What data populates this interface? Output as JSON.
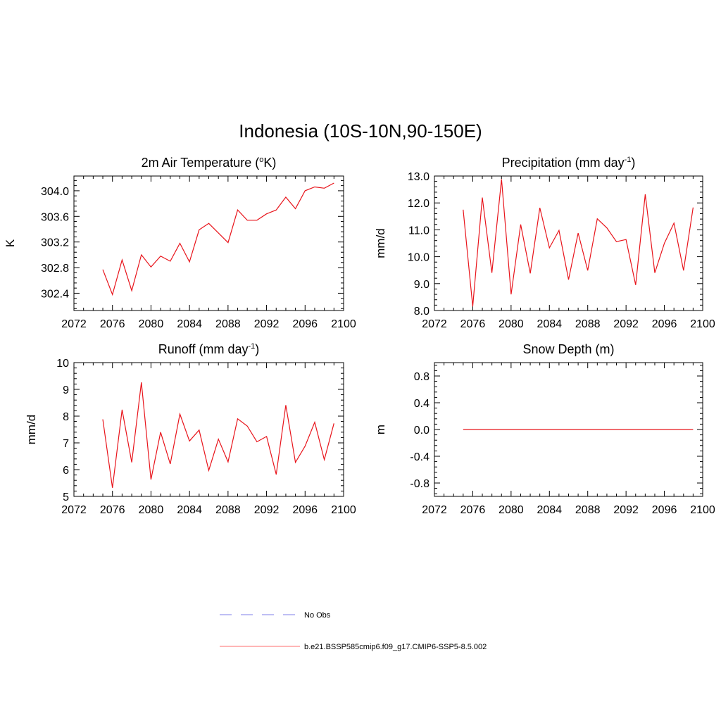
{
  "main_title": "Indonesia (10S-10N,90-150E)",
  "chart_data": [
    {
      "type": "line",
      "title": "2m Air Temperature (",
      "title_sup": "o",
      "title_tail": "K)",
      "ylabel": "K",
      "xlim": [
        2072,
        2100
      ],
      "ylim": [
        302.13,
        304.23
      ],
      "yticks": [
        302.4,
        302.8,
        303.2,
        303.6,
        304.0
      ],
      "ytick_labels": [
        "302.4",
        "302.8",
        "303.2",
        "303.6",
        "304.0"
      ],
      "xticks": [
        2072,
        2076,
        2080,
        2084,
        2088,
        2092,
        2096,
        2100
      ],
      "xtick_labels": [
        "2072",
        "2076",
        "2080",
        "2084",
        "2088",
        "2092",
        "2096",
        "2100"
      ],
      "x": [
        2075,
        2076,
        2077,
        2078,
        2079,
        2080,
        2081,
        2082,
        2083,
        2084,
        2085,
        2086,
        2087,
        2088,
        2089,
        2090,
        2091,
        2092,
        2093,
        2094,
        2095,
        2096,
        2097,
        2098,
        2099
      ],
      "values": [
        302.77,
        302.38,
        302.92,
        302.44,
        303.0,
        302.81,
        302.98,
        302.9,
        303.18,
        302.89,
        303.39,
        303.49,
        303.34,
        303.19,
        303.7,
        303.54,
        303.54,
        303.64,
        303.7,
        303.9,
        303.72,
        304.0,
        304.06,
        304.04,
        304.12
      ]
    },
    {
      "type": "line",
      "title": "Precipitation (mm day",
      "title_sup": "-1",
      "title_tail": ")",
      "ylabel": "mm/d",
      "xlim": [
        2072,
        2100
      ],
      "ylim": [
        8.0,
        13.0
      ],
      "yticks": [
        8.0,
        9.0,
        10.0,
        11.0,
        12.0,
        13.0
      ],
      "ytick_labels": [
        "8.0",
        "9.0",
        "10.0",
        "11.0",
        "12.0",
        "13.0"
      ],
      "xticks": [
        2072,
        2076,
        2080,
        2084,
        2088,
        2092,
        2096,
        2100
      ],
      "xtick_labels": [
        "2072",
        "2076",
        "2080",
        "2084",
        "2088",
        "2092",
        "2096",
        "2100"
      ],
      "x": [
        2075,
        2076,
        2077,
        2078,
        2079,
        2080,
        2081,
        2082,
        2083,
        2084,
        2085,
        2086,
        2087,
        2088,
        2089,
        2090,
        2091,
        2092,
        2093,
        2094,
        2095,
        2096,
        2097,
        2098,
        2099
      ],
      "values": [
        11.75,
        8.15,
        12.2,
        9.4,
        12.88,
        8.6,
        11.2,
        9.38,
        11.82,
        10.33,
        10.98,
        9.15,
        10.88,
        9.49,
        11.41,
        11.07,
        10.56,
        10.64,
        8.95,
        12.32,
        9.4,
        10.5,
        11.25,
        9.49,
        11.83
      ]
    },
    {
      "type": "line",
      "title": "Runoff (mm day",
      "title_sup": "-1",
      "title_tail": ")",
      "ylabel": "mm/d",
      "xlim": [
        2072,
        2100
      ],
      "ylim": [
        5,
        10
      ],
      "yticks": [
        5,
        6,
        7,
        8,
        9,
        10
      ],
      "ytick_labels": [
        "5",
        "6",
        "7",
        "8",
        "9",
        "10"
      ],
      "xticks": [
        2072,
        2076,
        2080,
        2084,
        2088,
        2092,
        2096,
        2100
      ],
      "xtick_labels": [
        "2072",
        "2076",
        "2080",
        "2084",
        "2088",
        "2092",
        "2096",
        "2100"
      ],
      "x": [
        2075,
        2076,
        2077,
        2078,
        2079,
        2080,
        2081,
        2082,
        2083,
        2084,
        2085,
        2086,
        2087,
        2088,
        2089,
        2090,
        2091,
        2092,
        2093,
        2094,
        2095,
        2096,
        2097,
        2098,
        2099
      ],
      "values": [
        7.88,
        5.32,
        8.24,
        6.27,
        9.26,
        5.63,
        7.4,
        6.21,
        8.08,
        7.07,
        7.48,
        5.97,
        7.14,
        6.29,
        7.9,
        7.63,
        7.04,
        7.24,
        5.82,
        8.41,
        6.27,
        6.88,
        7.77,
        6.37,
        7.73
      ]
    },
    {
      "type": "line",
      "title": "Snow Depth (m)",
      "title_sup": "",
      "title_tail": "",
      "ylabel": "m",
      "xlim": [
        2072,
        2100
      ],
      "ylim": [
        -1.0,
        1.0
      ],
      "yticks": [
        -0.8,
        -0.4,
        0.0,
        0.4,
        0.8
      ],
      "ytick_labels": [
        "-0.8",
        "-0.4",
        "0.0",
        "0.4",
        "0.8"
      ],
      "xticks": [
        2072,
        2076,
        2080,
        2084,
        2088,
        2092,
        2096,
        2100
      ],
      "xtick_labels": [
        "2072",
        "2076",
        "2080",
        "2084",
        "2088",
        "2092",
        "2096",
        "2100"
      ],
      "x": [
        2075,
        2076,
        2077,
        2078,
        2079,
        2080,
        2081,
        2082,
        2083,
        2084,
        2085,
        2086,
        2087,
        2088,
        2089,
        2090,
        2091,
        2092,
        2093,
        2094,
        2095,
        2096,
        2097,
        2098,
        2099
      ],
      "values": [
        0,
        0,
        0,
        0,
        0,
        0,
        0,
        0,
        0,
        0,
        0,
        0,
        0,
        0,
        0,
        0,
        0,
        0,
        0,
        0,
        0,
        0,
        0,
        0,
        0
      ]
    }
  ],
  "legend": [
    {
      "label": "No Obs",
      "color": "#9999ee",
      "style": "dashed"
    },
    {
      "label": "b.e21.BSSP585cmip6.f09_g17.CMIP6-SSP5-8.5.002",
      "color": "#ff8a8a",
      "style": "solid"
    }
  ],
  "series_color": "#e8141b"
}
